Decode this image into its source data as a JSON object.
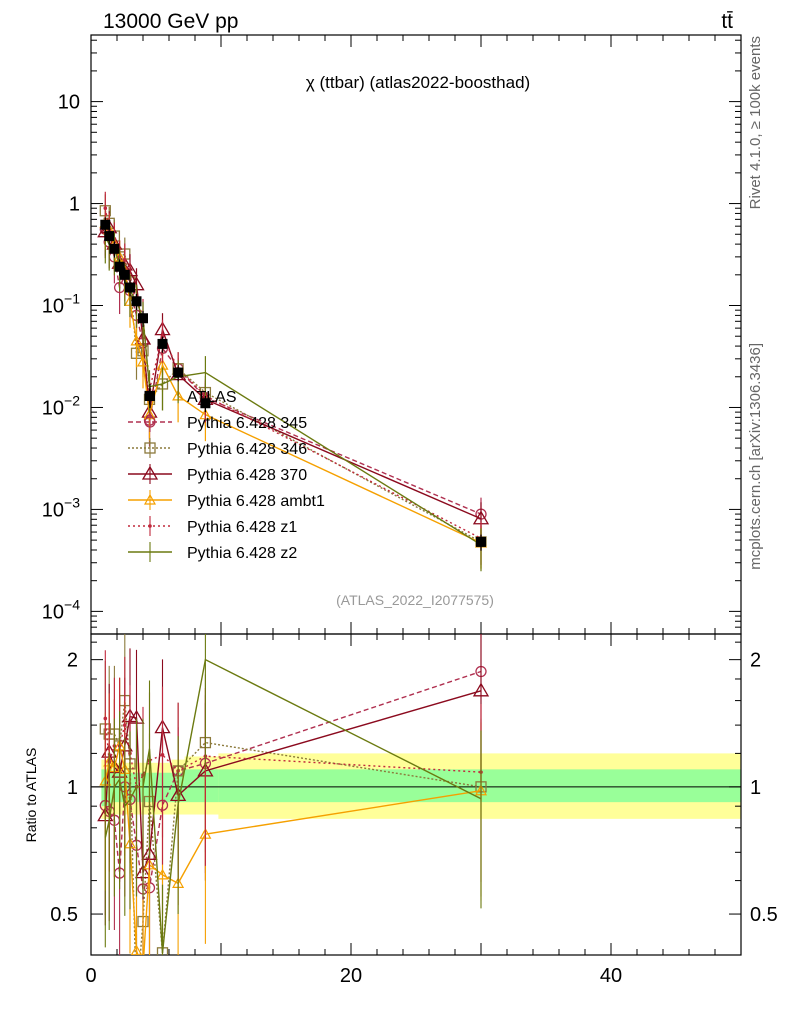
{
  "header": {
    "energy_label": "13000 GeV pp",
    "process_label": "tt̄",
    "rivet_label": "Rivet 4.1.0, ≥ 100k events",
    "mcplots_label": "mcplots.cern.ch [arXiv:1306.3436]"
  },
  "chart_data": {
    "type": "line",
    "title": "χ (ttbar) (atlas2022-boosthad)",
    "watermark": "(ATLAS_2022_I2077575)",
    "xlabel": "",
    "ylabel": "",
    "ratio_ylabel": "Ratio to ATLAS",
    "xlim": [
      0,
      50
    ],
    "ylim": [
      6e-05,
      45
    ],
    "yscale": "log",
    "ratio_ylim": [
      0.4,
      2.3
    ],
    "ratio_yscale": "log",
    "x_ticks": [
      "0",
      "20",
      "40"
    ],
    "x_tick_values": [
      0,
      20,
      40
    ],
    "y_tick_labels": [
      "10",
      "1",
      "10−1",
      "10−2",
      "10−3",
      "10−4"
    ],
    "y_tick_values": [
      10,
      1,
      0.1,
      0.01,
      0.001,
      0.0001
    ],
    "ratio_tick_labels": [
      "2",
      "1",
      "0.5"
    ],
    "ratio_tick_values": [
      2,
      1,
      0.5
    ],
    "legend_placement": "center-left",
    "x": [
      1.1,
      1.4,
      1.8,
      2.2,
      2.6,
      3.0,
      3.5,
      4.0,
      4.5,
      5.5,
      6.7,
      8.8,
      30
    ],
    "series": [
      {
        "name": "ATLAS",
        "color": "#000000",
        "marker": "square",
        "dash": "",
        "values": [
          0.62,
          0.48,
          0.36,
          0.24,
          0.2,
          0.15,
          0.11,
          0.075,
          0.013,
          0.042,
          0.022,
          0.011,
          0.00048
        ]
      },
      {
        "name": "Pythia 6.428 345",
        "color": "#b03050",
        "marker": "circle",
        "dash": "5,3",
        "values": [
          0.56,
          0.42,
          0.3,
          0.15,
          0.2,
          0.14,
          0.08,
          0.043,
          0.0075,
          0.038,
          0.024,
          0.0125,
          0.0009
        ]
      },
      {
        "name": "Pythia 6.428 346",
        "color": "#8c7a3c",
        "marker": "square-open",
        "dash": "2,2",
        "values": [
          0.85,
          0.64,
          0.48,
          0.3,
          0.32,
          0.17,
          0.034,
          0.036,
          0.012,
          0.017,
          0.024,
          0.014,
          0.00048
        ]
      },
      {
        "name": "Pythia 6.428 370",
        "color": "#8b0a1e",
        "marker": "triangle-open",
        "dash": "",
        "values": [
          0.53,
          0.58,
          0.4,
          0.26,
          0.25,
          0.22,
          0.16,
          0.047,
          0.009,
          0.058,
          0.021,
          0.012,
          0.00081
        ]
      },
      {
        "name": "Pythia 6.428 ambt1",
        "color": "#f5a000",
        "marker": "triangle-small",
        "dash": "",
        "values": [
          0.64,
          0.55,
          0.4,
          0.3,
          0.22,
          0.11,
          0.045,
          0.028,
          0.0085,
          0.026,
          0.013,
          0.0085,
          0.00047
        ]
      },
      {
        "name": "Pythia 6.428 z1",
        "color": "#c0283c",
        "marker": "dot",
        "dash": "2,3",
        "values": [
          0.9,
          0.55,
          0.45,
          0.3,
          0.28,
          0.18,
          0.11,
          0.08,
          0.015,
          0.05,
          0.024,
          0.013,
          0.00052
        ]
      },
      {
        "name": "Pythia 6.428 z2",
        "color": "#6b7a10",
        "marker": "none",
        "dash": "",
        "values": [
          0.47,
          0.4,
          0.36,
          0.25,
          0.18,
          0.14,
          0.11,
          0.075,
          0.016,
          0.017,
          0.02,
          0.022,
          0.00045
        ]
      }
    ],
    "ratio_bands": {
      "inner_color": "#99ff99",
      "outer_color": "#ffff99",
      "x_edges": [
        0.8,
        1.3,
        1.6,
        2.0,
        2.4,
        2.8,
        3.2,
        3.8,
        4.2,
        4.8,
        6.2,
        7.2,
        9.8,
        50
      ],
      "inner_lo": [
        0.9,
        0.9,
        0.92,
        0.92,
        0.92,
        0.92,
        0.92,
        0.92,
        0.92,
        0.92,
        0.92,
        0.92,
        0.92
      ],
      "inner_hi": [
        1.1,
        1.1,
        1.08,
        1.08,
        1.08,
        1.08,
        1.08,
        1.08,
        1.08,
        1.08,
        1.08,
        1.1,
        1.1
      ],
      "outer_lo": [
        0.84,
        0.85,
        0.86,
        0.86,
        0.86,
        0.86,
        0.86,
        0.86,
        0.86,
        0.86,
        0.86,
        0.86,
        0.84
      ],
      "outer_hi": [
        1.16,
        1.15,
        1.14,
        1.14,
        1.14,
        1.14,
        1.14,
        1.14,
        1.14,
        1.14,
        1.16,
        1.18,
        1.2
      ]
    }
  }
}
